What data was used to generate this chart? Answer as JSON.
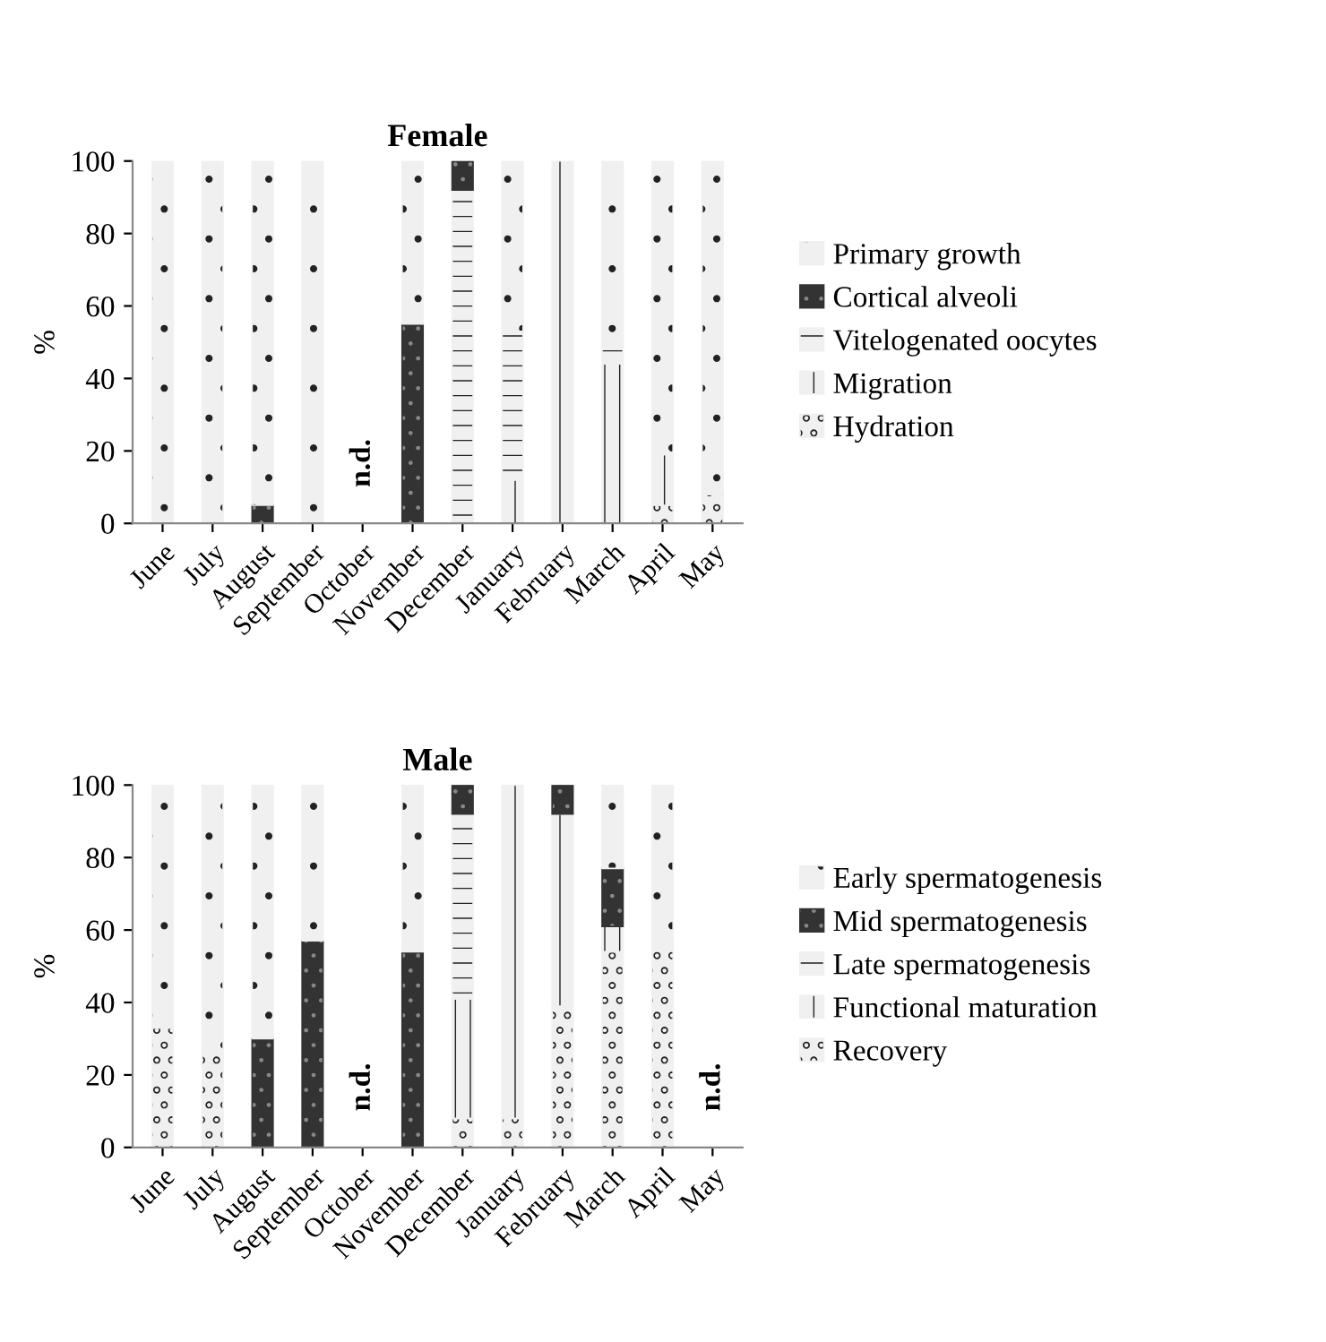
{
  "chart_data": [
    {
      "type": "bar",
      "title": "Female",
      "ylabel": "%",
      "stacked": true,
      "legend": "right",
      "grid": false,
      "ylim": [
        0,
        100
      ],
      "yticks": [
        0,
        20,
        40,
        60,
        80,
        100
      ],
      "categories": [
        "June",
        "July",
        "August",
        "September",
        "October",
        "November",
        "December",
        "January",
        "February",
        "March",
        "April",
        "May"
      ],
      "series": [
        {
          "name": "Hydration",
          "color": "#f0f0f0",
          "values": [
            0,
            0,
            0,
            0,
            null,
            0,
            0,
            0,
            0,
            0,
            5,
            8
          ]
        },
        {
          "name": "Migration",
          "color": "#f0f0f0",
          "values": [
            0,
            0,
            0,
            0,
            null,
            0,
            0,
            12,
            100,
            44,
            14,
            0
          ]
        },
        {
          "name": "Vitelogenated oocytes",
          "color": "#f0f0f0",
          "values": [
            0,
            0,
            0,
            0,
            null,
            0,
            92,
            41,
            0,
            7,
            0,
            0
          ]
        },
        {
          "name": "Cortical alveoli",
          "color": "#333333",
          "values": [
            0,
            0,
            5,
            0,
            null,
            55,
            8,
            0,
            0,
            0,
            0,
            0
          ]
        },
        {
          "name": "Primary growth",
          "color": "#f0f0f0",
          "values": [
            100,
            100,
            95,
            100,
            null,
            45,
            0,
            47,
            0,
            49,
            81,
            92
          ]
        }
      ],
      "annotations": [
        "n.d."
      ]
    },
    {
      "type": "bar",
      "title": "Male",
      "ylabel": "%",
      "stacked": true,
      "legend": "right",
      "grid": false,
      "ylim": [
        0,
        100
      ],
      "yticks": [
        0,
        20,
        40,
        60,
        80,
        100
      ],
      "categories": [
        "June",
        "July",
        "August",
        "September",
        "October",
        "November",
        "December",
        "January",
        "February",
        "March",
        "April",
        "May"
      ],
      "series": [
        {
          "name": "Recovery",
          "color": "#f0f0f0",
          "values": [
            33,
            27,
            0,
            0,
            null,
            0,
            8,
            8,
            39,
            54,
            55,
            null
          ]
        },
        {
          "name": "Functional maturation",
          "color": "#f0f0f0",
          "values": [
            0,
            0,
            0,
            0,
            null,
            0,
            33,
            92,
            53,
            7,
            0,
            null
          ]
        },
        {
          "name": "Late spermatogenesis",
          "color": "#f0f0f0",
          "values": [
            0,
            0,
            0,
            0,
            null,
            0,
            51,
            0,
            0,
            0,
            0,
            null
          ]
        },
        {
          "name": "Mid spermatogenesis",
          "color": "#333333",
          "values": [
            0,
            0,
            30,
            57,
            null,
            54,
            8,
            0,
            8,
            16,
            0,
            null
          ]
        },
        {
          "name": "Early spermatogenesis",
          "color": "#f0f0f0",
          "values": [
            67,
            73,
            70,
            43,
            null,
            46,
            0,
            0,
            0,
            23,
            45,
            null
          ]
        }
      ],
      "annotations": [
        "n.d.",
        "n.d."
      ]
    }
  ]
}
